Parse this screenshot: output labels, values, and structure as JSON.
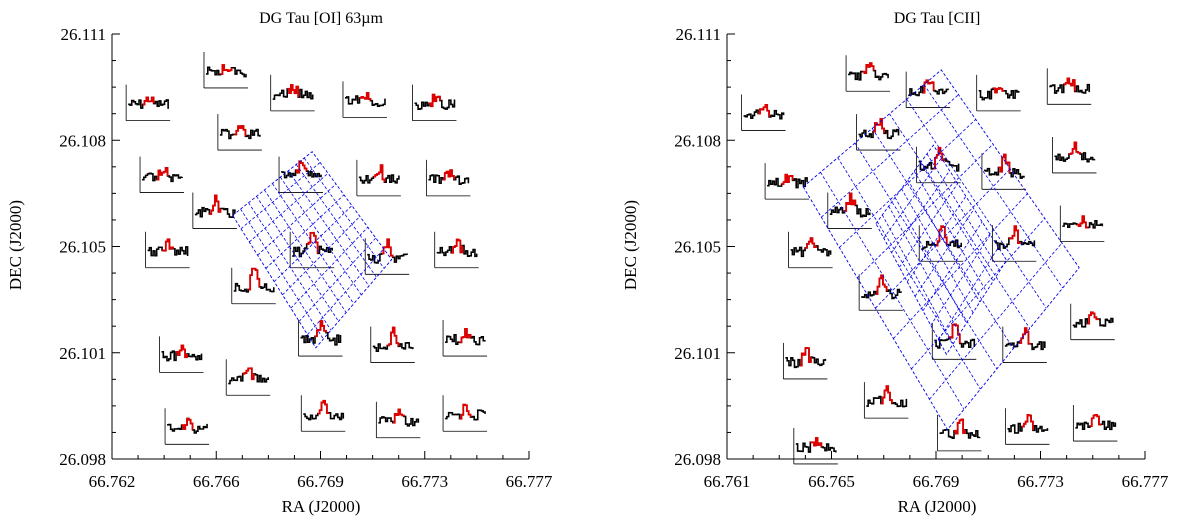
{
  "chart_data": [
    {
      "type": "scatter",
      "title": "DG Tau [OI] 63µm",
      "xlabel": "RA (J2000)",
      "ylabel": "DEC (J2000)",
      "xlim": [
        66.762,
        66.777
      ],
      "ylim": [
        26.098,
        26.111
      ],
      "xticks": [
        "66.762",
        "66.766",
        "66.769",
        "66.773",
        "66.777"
      ],
      "yticks": [
        "26.098",
        "26.101",
        "26.105",
        "26.108",
        "26.111"
      ],
      "spectra": [
        {
          "ra": 66.7633,
          "dec": 26.1089,
          "peak": 0.3
        },
        {
          "ra": 66.7661,
          "dec": 26.1099,
          "peak": 0.25
        },
        {
          "ra": 66.7685,
          "dec": 26.1092,
          "peak": 0.4
        },
        {
          "ra": 66.7711,
          "dec": 26.109,
          "peak": 0.3
        },
        {
          "ra": 66.7736,
          "dec": 26.1089,
          "peak": 0.35
        },
        {
          "ra": 66.7666,
          "dec": 26.108,
          "peak": 0.5
        },
        {
          "ra": 66.7638,
          "dec": 26.1067,
          "peak": 0.4
        },
        {
          "ra": 66.7688,
          "dec": 26.1067,
          "peak": 0.9
        },
        {
          "ra": 66.7716,
          "dec": 26.1066,
          "peak": 0.6
        },
        {
          "ra": 66.7741,
          "dec": 26.1066,
          "peak": 0.4
        },
        {
          "ra": 66.7657,
          "dec": 26.1056,
          "peak": 0.6
        },
        {
          "ra": 66.7692,
          "dec": 26.1044,
          "peak": 1.0
        },
        {
          "ra": 66.7719,
          "dec": 26.1042,
          "peak": 0.8
        },
        {
          "ra": 66.764,
          "dec": 26.1044,
          "peak": 0.4
        },
        {
          "ra": 66.7744,
          "dec": 26.1044,
          "peak": 0.4
        },
        {
          "ra": 66.7671,
          "dec": 26.1033,
          "peak": 0.9
        },
        {
          "ra": 66.7645,
          "dec": 26.1012,
          "peak": 0.35
        },
        {
          "ra": 66.7695,
          "dec": 26.1017,
          "peak": 0.9
        },
        {
          "ra": 66.7721,
          "dec": 26.1015,
          "peak": 0.8
        },
        {
          "ra": 66.7747,
          "dec": 26.1017,
          "peak": 0.4
        },
        {
          "ra": 66.7669,
          "dec": 26.1005,
          "peak": 0.4
        },
        {
          "ra": 66.7647,
          "dec": 26.099,
          "peak": 0.35
        },
        {
          "ra": 66.7696,
          "dec": 26.0994,
          "peak": 0.6
        },
        {
          "ra": 66.7723,
          "dec": 26.0992,
          "peak": 0.5
        },
        {
          "ra": 66.7747,
          "dec": 26.0994,
          "peak": 0.4
        }
      ],
      "grid": false,
      "legend": "none",
      "colors": {
        "spectrum": "#000000",
        "line_core": "#e00000",
        "footprint": "#0000ee"
      }
    },
    {
      "type": "scatter",
      "title": "DG Tau [CII]",
      "xlabel": "RA (J2000)",
      "ylabel": "DEC (J2000)",
      "xlim": [
        66.761,
        66.777
      ],
      "ylim": [
        26.098,
        26.111
      ],
      "xticks": [
        "66.761",
        "66.765",
        "66.769",
        "66.773",
        "66.777"
      ],
      "yticks": [
        "26.098",
        "26.101",
        "26.105",
        "26.108",
        "26.111"
      ],
      "spectra": [
        {
          "ra": 66.7664,
          "dec": 26.1098,
          "peak": 0.6
        },
        {
          "ra": 66.7624,
          "dec": 26.1086,
          "peak": 0.55
        },
        {
          "ra": 66.7687,
          "dec": 26.1093,
          "peak": 0.6
        },
        {
          "ra": 66.7714,
          "dec": 26.1092,
          "peak": 0.55
        },
        {
          "ra": 66.7741,
          "dec": 26.1094,
          "peak": 0.45
        },
        {
          "ra": 66.7668,
          "dec": 26.108,
          "peak": 0.7
        },
        {
          "ra": 66.7633,
          "dec": 26.1065,
          "peak": 0.3
        },
        {
          "ra": 66.7691,
          "dec": 26.107,
          "peak": 0.8
        },
        {
          "ra": 66.7716,
          "dec": 26.1068,
          "peak": 0.7
        },
        {
          "ra": 66.7743,
          "dec": 26.1073,
          "peak": 0.5
        },
        {
          "ra": 66.7657,
          "dec": 26.1056,
          "peak": 0.8
        },
        {
          "ra": 66.7692,
          "dec": 26.1046,
          "peak": 0.9
        },
        {
          "ra": 66.772,
          "dec": 26.1046,
          "peak": 0.8
        },
        {
          "ra": 66.7642,
          "dec": 26.1044,
          "peak": 0.5
        },
        {
          "ra": 66.7746,
          "dec": 26.1052,
          "peak": 0.3
        },
        {
          "ra": 66.7669,
          "dec": 26.1031,
          "peak": 0.8
        },
        {
          "ra": 66.764,
          "dec": 26.101,
          "peak": 0.6
        },
        {
          "ra": 66.7697,
          "dec": 26.1016,
          "peak": 0.9
        },
        {
          "ra": 66.7724,
          "dec": 26.1015,
          "peak": 0.8
        },
        {
          "ra": 66.775,
          "dec": 26.1022,
          "peak": 0.4
        },
        {
          "ra": 66.7671,
          "dec": 26.0998,
          "peak": 0.7
        },
        {
          "ra": 66.7644,
          "dec": 26.0984,
          "peak": 0.4
        },
        {
          "ra": 66.7699,
          "dec": 26.0988,
          "peak": 0.65
        },
        {
          "ra": 66.7725,
          "dec": 26.099,
          "peak": 0.6
        },
        {
          "ra": 66.7751,
          "dec": 26.0991,
          "peak": 0.45
        }
      ],
      "grid": false,
      "legend": "none",
      "colors": {
        "spectrum": "#000000",
        "line_core": "#e00000",
        "footprint": "#0000ee"
      }
    }
  ]
}
